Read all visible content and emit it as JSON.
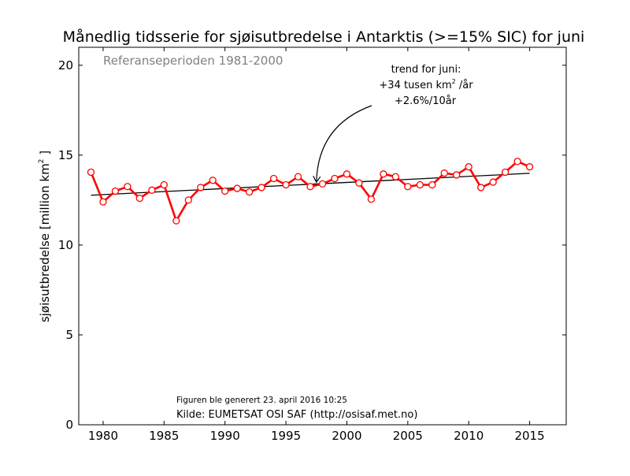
{
  "chart_data": {
    "type": "line",
    "title": "Månedlig tidsserie for sjøisutbredelse i Antarktis (>=15% SIC) for juni",
    "subtitle": "Referanseperioden 1981-2000",
    "xlabel": "",
    "ylabel_prefix": "sjøisutbredelse [million km",
    "ylabel_sup": "2",
    "ylabel_suffix": " ]",
    "xlim": [
      1978,
      2018
    ],
    "ylim": [
      0,
      21
    ],
    "xticks": [
      1980,
      1985,
      1990,
      1995,
      2000,
      2005,
      2010,
      2015
    ],
    "yticks": [
      0,
      5,
      10,
      15,
      20
    ],
    "grid": false,
    "series": [
      {
        "color": "#ff0000",
        "marker": "open-circle",
        "x": [
          1979,
          1980,
          1981,
          1982,
          1983,
          1984,
          1985,
          1986,
          1987,
          1988,
          1989,
          1990,
          1991,
          1992,
          1993,
          1994,
          1995,
          1996,
          1997,
          1998,
          1999,
          2000,
          2001,
          2002,
          2003,
          2004,
          2005,
          2006,
          2007,
          2008,
          2009,
          2010,
          2011,
          2012,
          2013,
          2014,
          2015
        ],
        "values": [
          14.05,
          12.4,
          13.0,
          13.25,
          12.6,
          13.05,
          13.35,
          11.35,
          12.5,
          13.2,
          13.6,
          13.0,
          13.15,
          12.95,
          13.2,
          13.7,
          13.35,
          13.8,
          13.25,
          13.4,
          13.7,
          13.95,
          13.45,
          12.55,
          13.95,
          13.8,
          13.25,
          13.35,
          13.35,
          14.0,
          13.9,
          14.35,
          13.2,
          13.5,
          14.05,
          14.65,
          14.35
        ]
      },
      {
        "color": "#000000",
        "kind": "trend",
        "x": [
          1979,
          2015
        ],
        "values": [
          12.77,
          13.99
        ]
      }
    ],
    "annotations": {
      "trend_line1": "trend for juni:",
      "trend_line2_prefix": "+34 tusen km",
      "trend_line2_sup": "2",
      "trend_line2_suffix": " /år",
      "trend_line3": "+2.6%/10år",
      "arrow_target": {
        "x": 1997.5,
        "y": 13.45
      },
      "generated": "Figuren ble generert 23. april 2016 10:25",
      "source": "Kilde: EUMETSAT OSI SAF (http://osisaf.met.no)"
    },
    "colors": {
      "data_line": "#ff0000",
      "trend_line": "#000000",
      "subtitle": "#808080"
    }
  }
}
